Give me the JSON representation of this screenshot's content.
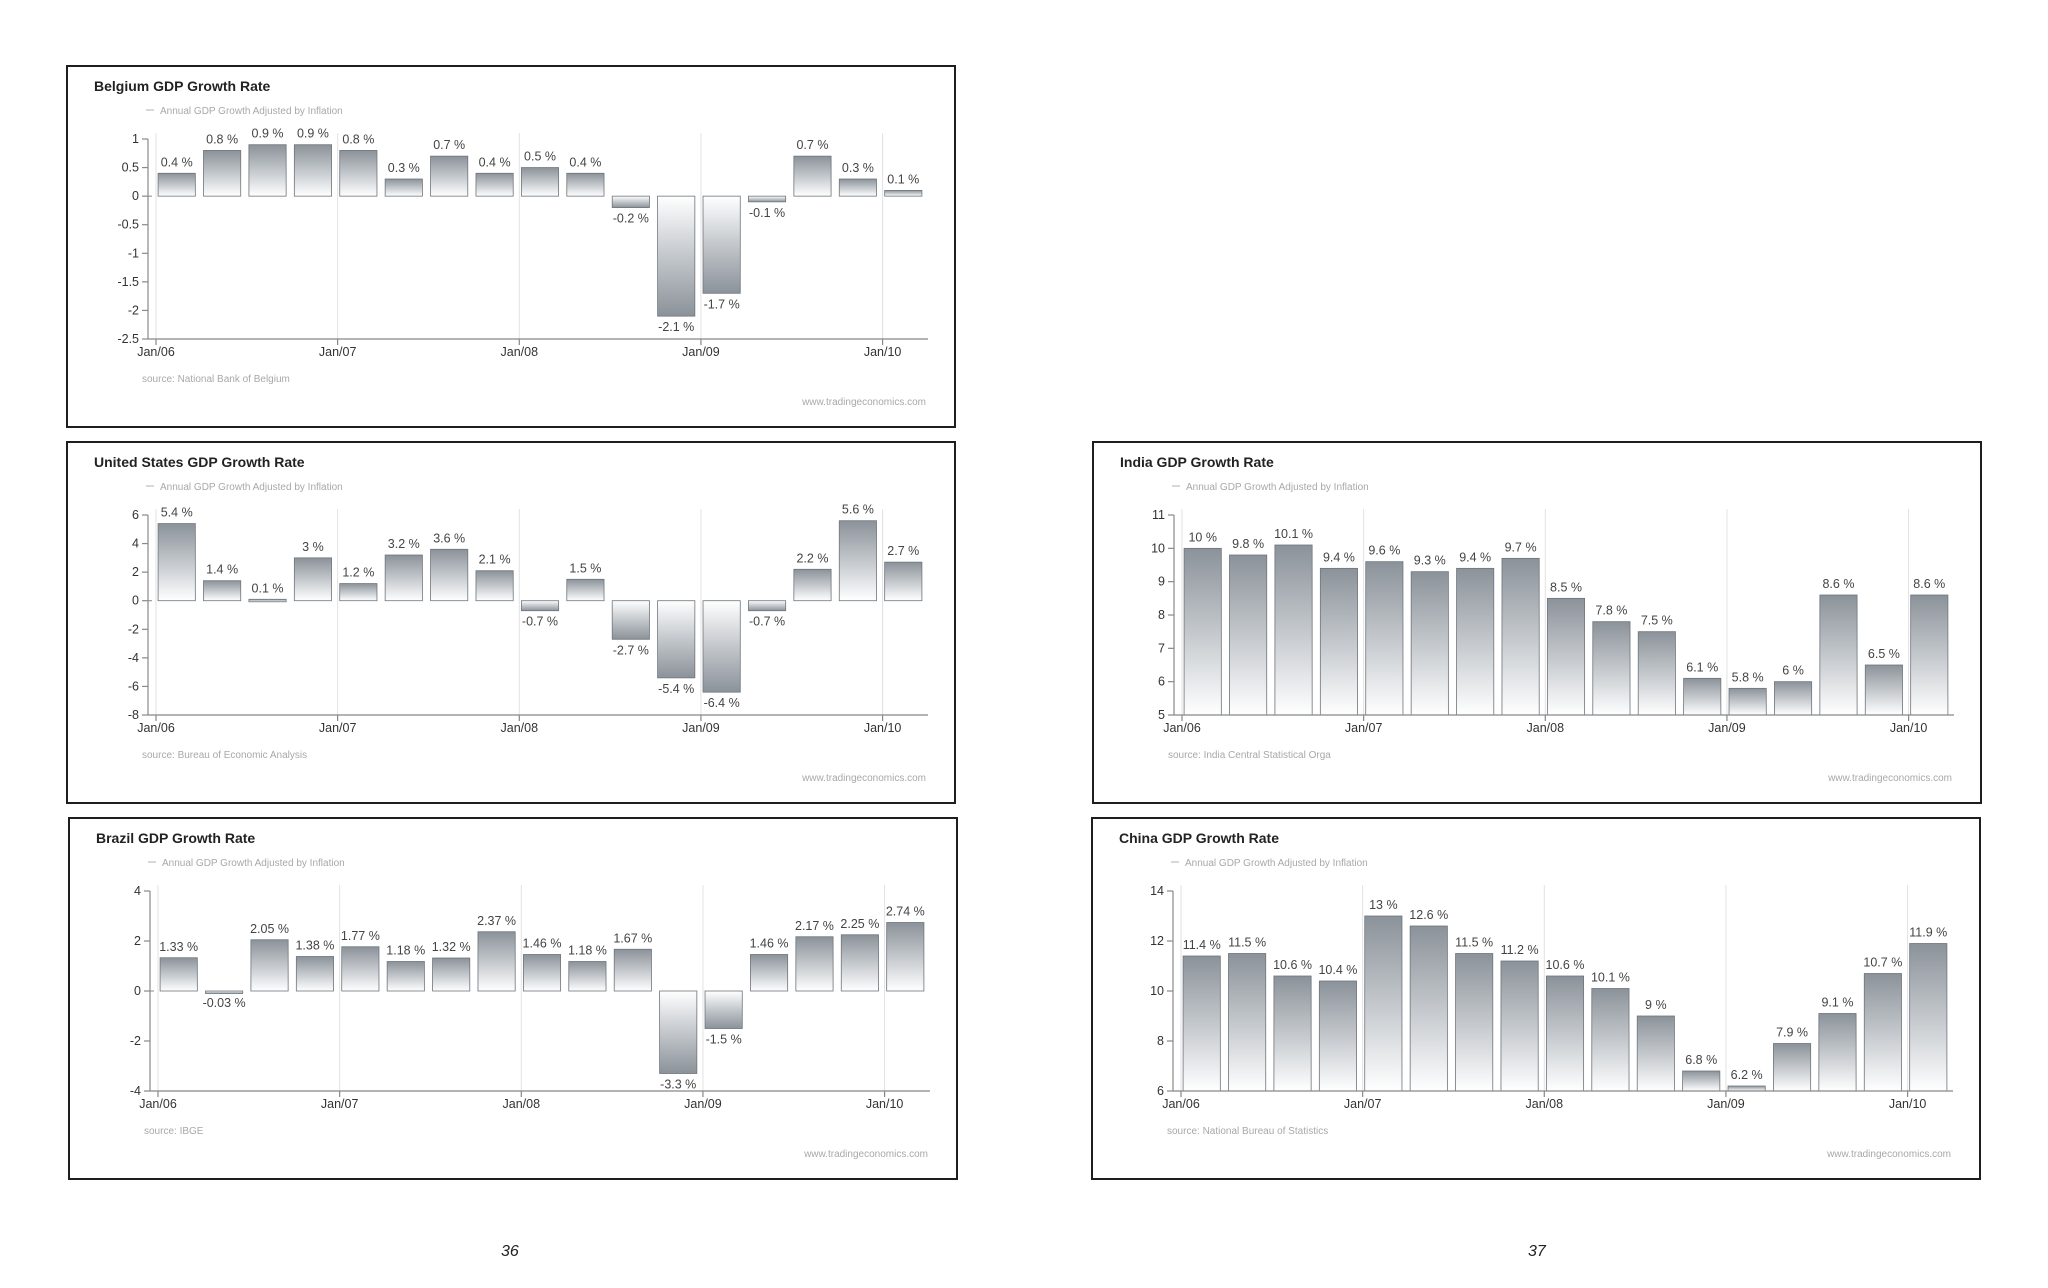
{
  "page_numbers": [
    "36",
    "37"
  ],
  "colors": {
    "bar_top": "#8b9299",
    "bar_mid": "#c9cdd1",
    "bar_bottom": "#ffffff",
    "bar_edge": "#6e757c",
    "axis": "#888888",
    "grid": "#e2e2e2"
  },
  "chart_data": [
    {
      "id": "belgium",
      "type": "bar",
      "title": "Belgium GDP Growth Rate",
      "legend": "Annual GDP Growth Adjusted by Inflation",
      "source": "source: National Bank of Belgium",
      "site": "www.tradingeconomics.com",
      "ylim": [
        -2.5,
        1
      ],
      "yticks": [
        1,
        0.5,
        0,
        -0.5,
        -1,
        -1.5,
        -2,
        -2.5
      ],
      "ytick_labels": [
        "1",
        "0.5",
        "0",
        "-0.5",
        "-1",
        "-1.5",
        "-2",
        "-2.5"
      ],
      "xticks": [
        {
          "index": 0,
          "label": "Jan/06"
        },
        {
          "index": 4,
          "label": "Jan/07"
        },
        {
          "index": 8,
          "label": "Jan/08"
        },
        {
          "index": 12,
          "label": "Jan/09"
        },
        {
          "index": 16,
          "label": "Jan/10"
        }
      ],
      "values": [
        0.4,
        0.8,
        0.9,
        0.9,
        0.8,
        0.3,
        0.7,
        0.4,
        0.5,
        0.4,
        -0.2,
        -2.1,
        -1.7,
        -0.1,
        0.7,
        0.3,
        0.1
      ],
      "labels": [
        "0.4 %",
        "0.8 %",
        "0.9 %",
        "0.9 %",
        "0.8 %",
        "0.3 %",
        "0.7 %",
        "0.4 %",
        "0.5 %",
        "0.4 %",
        "-0.2 %",
        "-2.1 %",
        "-1.7 %",
        "-0.1 %",
        "0.7 %",
        "0.3 %",
        "0.1 %"
      ]
    },
    {
      "id": "united-states",
      "type": "bar",
      "title": "United States GDP Growth Rate",
      "legend": "Annual GDP Growth Adjusted by Inflation",
      "source": "source: Bureau of Economic Analysis",
      "site": "www.tradingeconomics.com",
      "ylim": [
        -8,
        6
      ],
      "yticks": [
        6,
        4,
        2,
        0,
        -2,
        -4,
        -6,
        -8
      ],
      "ytick_labels": [
        "6",
        "4",
        "2",
        "0",
        "-2",
        "-4",
        "-6",
        "-8"
      ],
      "xticks": [
        {
          "index": 0,
          "label": "Jan/06"
        },
        {
          "index": 4,
          "label": "Jan/07"
        },
        {
          "index": 8,
          "label": "Jan/08"
        },
        {
          "index": 12,
          "label": "Jan/09"
        },
        {
          "index": 16,
          "label": "Jan/10"
        }
      ],
      "values": [
        5.4,
        1.4,
        0.1,
        3,
        1.2,
        3.2,
        3.6,
        2.1,
        -0.7,
        1.5,
        -2.7,
        -5.4,
        -6.4,
        -0.7,
        2.2,
        5.6,
        2.7
      ],
      "labels": [
        "5.4 %",
        "1.4 %",
        "0.1 %",
        "3 %",
        "1.2 %",
        "3.2 %",
        "3.6 %",
        "2.1 %",
        "-0.7 %",
        "1.5 %",
        "-2.7 %",
        "-5.4 %",
        "-6.4 %",
        "-0.7 %",
        "2.2 %",
        "5.6 %",
        "2.7 %"
      ]
    },
    {
      "id": "india",
      "type": "bar",
      "title": "India GDP Growth Rate",
      "legend": "Annual GDP Growth Adjusted by Inflation",
      "source": "source: India Central Statistical Orga",
      "site": "www.tradingeconomics.com",
      "ylim": [
        5,
        11
      ],
      "yticks": [
        11,
        10,
        9,
        8,
        7,
        6,
        5
      ],
      "ytick_labels": [
        "11",
        "10",
        "9",
        "8",
        "7",
        "6",
        "5"
      ],
      "xticks": [
        {
          "index": 0,
          "label": "Jan/06"
        },
        {
          "index": 4,
          "label": "Jan/07"
        },
        {
          "index": 8,
          "label": "Jan/08"
        },
        {
          "index": 12,
          "label": "Jan/09"
        },
        {
          "index": 16,
          "label": "Jan/10"
        }
      ],
      "values": [
        10,
        9.8,
        10.1,
        9.4,
        9.6,
        9.3,
        9.4,
        9.7,
        8.5,
        7.8,
        7.5,
        6.1,
        5.8,
        6,
        8.6,
        6.5,
        8.6
      ],
      "labels": [
        "10 %",
        "9.8 %",
        "10.1 %",
        "9.4 %",
        "9.6 %",
        "9.3 %",
        "9.4 %",
        "9.7 %",
        "8.5 %",
        "7.8 %",
        "7.5 %",
        "6.1 %",
        "5.8 %",
        "6 %",
        "8.6 %",
        "6.5 %",
        "8.6 %"
      ]
    },
    {
      "id": "brazil",
      "type": "bar",
      "title": "Brazil GDP Growth Rate",
      "legend": "Annual GDP Growth Adjusted by Inflation",
      "source": "source: IBGE",
      "site": "www.tradingeconomics.com",
      "ylim": [
        -4,
        4
      ],
      "yticks": [
        4,
        2,
        0,
        -2,
        -4
      ],
      "ytick_labels": [
        "4",
        "2",
        "0",
        "-2",
        "-4"
      ],
      "xticks": [
        {
          "index": 0,
          "label": "Jan/06"
        },
        {
          "index": 4,
          "label": "Jan/07"
        },
        {
          "index": 8,
          "label": "Jan/08"
        },
        {
          "index": 12,
          "label": "Jan/09"
        },
        {
          "index": 16,
          "label": "Jan/10"
        }
      ],
      "values": [
        1.33,
        -0.03,
        2.05,
        1.38,
        1.77,
        1.18,
        1.32,
        2.37,
        1.46,
        1.18,
        1.67,
        -3.3,
        -1.5,
        1.46,
        2.17,
        2.25,
        2.74
      ],
      "labels": [
        "1.33 %",
        "-0.03 %",
        "2.05 %",
        "1.38 %",
        "1.77 %",
        "1.18 %",
        "1.32 %",
        "2.37 %",
        "1.46 %",
        "1.18 %",
        "1.67 %",
        "-3.3 %",
        "-1.5 %",
        "1.46 %",
        "2.17 %",
        "2.25 %",
        "2.74 %"
      ]
    },
    {
      "id": "china",
      "type": "bar",
      "title": "China GDP Growth Rate",
      "legend": "Annual GDP Growth Adjusted by Inflation",
      "source": "source: National Bureau of Statistics",
      "site": "www.tradingeconomics.com",
      "ylim": [
        6,
        14
      ],
      "yticks": [
        14,
        12,
        10,
        8,
        6
      ],
      "ytick_labels": [
        "14",
        "12",
        "10",
        "8",
        "6"
      ],
      "xticks": [
        {
          "index": 0,
          "label": "Jan/06"
        },
        {
          "index": 4,
          "label": "Jan/07"
        },
        {
          "index": 8,
          "label": "Jan/08"
        },
        {
          "index": 12,
          "label": "Jan/09"
        },
        {
          "index": 16,
          "label": "Jan/10"
        }
      ],
      "values": [
        11.4,
        11.5,
        10.6,
        10.4,
        13,
        12.6,
        11.5,
        11.2,
        10.6,
        10.1,
        9,
        6.8,
        6.2,
        7.9,
        9.1,
        10.7,
        11.9
      ],
      "labels": [
        "11.4 %",
        "11.5 %",
        "10.6 %",
        "10.4 %",
        "13 %",
        "12.6 %",
        "11.5 %",
        "11.2 %",
        "10.6 %",
        "10.1 %",
        "9 %",
        "6.8 %",
        "6.2 %",
        "7.9 %",
        "9.1 %",
        "10.7 %",
        "11.9 %"
      ]
    }
  ]
}
